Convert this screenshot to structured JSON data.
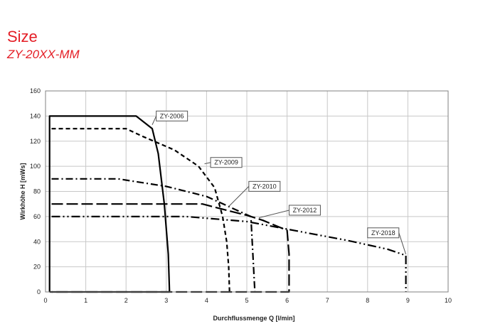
{
  "header": {
    "title": "Size",
    "subtitle": "ZY-20XX-MM"
  },
  "chart_data": {
    "type": "line",
    "title": "",
    "xlabel": "Durchflussmenge Q [l/min]",
    "ylabel": "Wirkhöhe H [mWs]",
    "xlim": [
      0,
      10
    ],
    "ylim": [
      0,
      160
    ],
    "xticks": [
      "0",
      "1",
      "2",
      "3",
      "4",
      "5",
      "6",
      "7",
      "8",
      "9",
      "10"
    ],
    "yticks": [
      "0",
      "20",
      "40",
      "60",
      "80",
      "100",
      "120",
      "140",
      "160"
    ],
    "grid": true,
    "legend": "callouts",
    "series": [
      {
        "name": "ZY-2006",
        "style": "solid",
        "points": [
          [
            0.1,
            0
          ],
          [
            0.1,
            140
          ],
          [
            2.25,
            140
          ],
          [
            2.65,
            130
          ],
          [
            2.8,
            110
          ],
          [
            2.95,
            70
          ],
          [
            3.05,
            30
          ],
          [
            3.08,
            0
          ],
          [
            0.1,
            0
          ]
        ]
      },
      {
        "name": "ZY-2009",
        "style": "dash",
        "points": [
          [
            0.15,
            130
          ],
          [
            2.0,
            130
          ],
          [
            2.4,
            124
          ],
          [
            3.2,
            113
          ],
          [
            3.8,
            100
          ],
          [
            4.2,
            83
          ],
          [
            4.4,
            60
          ],
          [
            4.5,
            40
          ],
          [
            4.55,
            20
          ],
          [
            4.57,
            0
          ]
        ]
      },
      {
        "name": "ZY-2010",
        "style": "dashdot",
        "points": [
          [
            0.15,
            90
          ],
          [
            1.8,
            90
          ],
          [
            3.0,
            84
          ],
          [
            4.0,
            76
          ],
          [
            5.1,
            60
          ],
          [
            5.15,
            30
          ],
          [
            5.2,
            0
          ]
        ]
      },
      {
        "name": "ZY-2012",
        "style": "longdash",
        "points": [
          [
            0.15,
            70
          ],
          [
            3.9,
            70
          ],
          [
            4.5,
            65
          ],
          [
            5.0,
            61
          ],
          [
            5.4,
            57
          ],
          [
            6.0,
            49
          ],
          [
            6.05,
            30
          ],
          [
            6.05,
            0
          ],
          [
            0.15,
            0
          ]
        ]
      },
      {
        "name": "ZY-2018",
        "style": "dashdotdot",
        "points": [
          [
            0.15,
            60
          ],
          [
            3.5,
            60
          ],
          [
            5.0,
            56
          ],
          [
            6.5,
            47
          ],
          [
            7.5,
            41
          ],
          [
            8.5,
            34
          ],
          [
            8.95,
            29
          ],
          [
            8.95,
            0
          ]
        ]
      }
    ],
    "callouts": [
      {
        "label": "ZY-2006",
        "anchor": [
          2.65,
          133
        ],
        "box": [
          2.75,
          144
        ]
      },
      {
        "label": "ZY-2009",
        "anchor": [
          3.95,
          102
        ],
        "box": [
          4.1,
          107
        ]
      },
      {
        "label": "ZY-2010",
        "anchor": [
          4.55,
          68
        ],
        "box": [
          5.05,
          88
        ]
      },
      {
        "label": "ZY-2012",
        "anchor": [
          5.3,
          59
        ],
        "box": [
          6.05,
          69
        ]
      },
      {
        "label": "ZY-2018",
        "anchor": [
          8.95,
          30
        ],
        "box": [
          8.0,
          51
        ]
      }
    ]
  }
}
